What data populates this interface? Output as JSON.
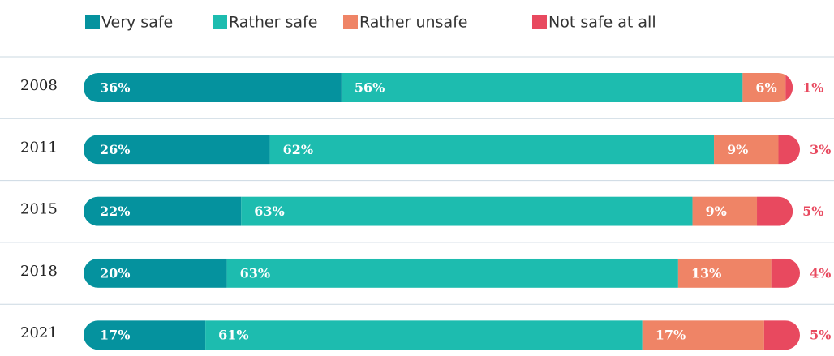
{
  "chart_data": {
    "type": "stacked-bar-horizontal",
    "categories": [
      "2008",
      "2011",
      "2015",
      "2018",
      "2021"
    ],
    "series": [
      {
        "name": "Very safe",
        "color": "#05929e",
        "values": [
          36,
          26,
          22,
          20,
          17
        ],
        "value_labels": [
          "36%",
          "26%",
          "22%",
          "20%",
          "17%"
        ]
      },
      {
        "name": "Rather safe",
        "color": "#1dbcaf",
        "values": [
          56,
          62,
          63,
          63,
          61
        ],
        "value_labels": [
          "56%",
          "62%",
          "63%",
          "63%",
          "61%"
        ]
      },
      {
        "name": "Rather unsafe",
        "color": "#ef8466",
        "values": [
          6,
          9,
          9,
          13,
          17
        ],
        "value_labels": [
          "6%",
          "9%",
          "9%",
          "13%",
          "17%"
        ]
      },
      {
        "name": "Not safe at all",
        "color": "#e8495f",
        "values": [
          1,
          3,
          5,
          4,
          5
        ],
        "value_labels": [
          "1%",
          "3%",
          "5%",
          "4%",
          "5%"
        ]
      }
    ],
    "legend": "top"
  }
}
